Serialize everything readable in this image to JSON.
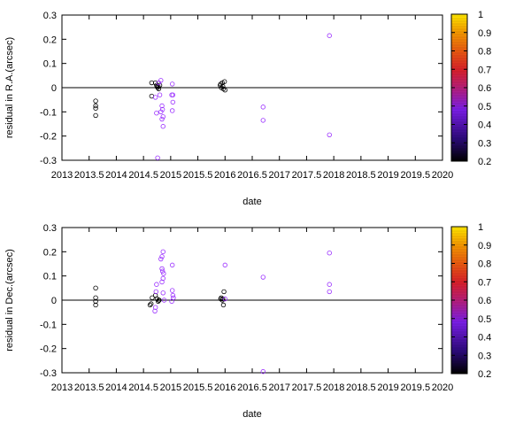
{
  "chart_data": [
    {
      "type": "scatter",
      "xlabel": "date",
      "ylabel": "residual in R.A.(arcsec)",
      "xlim": [
        2013,
        2020
      ],
      "ylim": [
        -0.3,
        0.3
      ],
      "xticks": [
        "2013",
        "2013.5",
        "2014",
        "2014.5",
        "2015",
        "2015.5",
        "2016",
        "2016.5",
        "2017",
        "2017.5",
        "2018",
        "2018.5",
        "2019",
        "2019.5",
        "2020"
      ],
      "yticks": [
        "-0.3",
        "-0.2",
        "-0.1",
        "0",
        "0.1",
        "0.2",
        "0.3"
      ],
      "zero_line": true,
      "colorbar": {
        "range": [
          0.2,
          1
        ],
        "ticks": [
          "1",
          "0.9",
          "0.8",
          "0.7",
          "0.6",
          "0.5",
          "0.4",
          "0.3",
          "0.2"
        ]
      },
      "points": [
        {
          "x": 2013.62,
          "y": -0.055,
          "c": 0.2
        },
        {
          "x": 2013.62,
          "y": -0.075,
          "c": 0.2
        },
        {
          "x": 2013.62,
          "y": -0.085,
          "c": 0.2
        },
        {
          "x": 2013.62,
          "y": -0.115,
          "c": 0.2
        },
        {
          "x": 2014.65,
          "y": 0.02,
          "c": 0.2
        },
        {
          "x": 2014.65,
          "y": -0.035,
          "c": 0.2
        },
        {
          "x": 2014.72,
          "y": 0.02,
          "c": 0.2
        },
        {
          "x": 2014.74,
          "y": 0.01,
          "c": 0.2
        },
        {
          "x": 2014.75,
          "y": 0.005,
          "c": 0.2
        },
        {
          "x": 2014.76,
          "y": 0.0,
          "c": 0.2
        },
        {
          "x": 2014.77,
          "y": 0.005,
          "c": 0.2
        },
        {
          "x": 2014.78,
          "y": -0.005,
          "c": 0.2
        },
        {
          "x": 2014.8,
          "y": 0.01,
          "c": 0.2
        },
        {
          "x": 2014.72,
          "y": -0.04,
          "c": 0.45
        },
        {
          "x": 2014.74,
          "y": -0.105,
          "c": 0.45
        },
        {
          "x": 2014.76,
          "y": -0.29,
          "c": 0.45
        },
        {
          "x": 2014.78,
          "y": 0.02,
          "c": 0.45
        },
        {
          "x": 2014.8,
          "y": -0.03,
          "c": 0.45
        },
        {
          "x": 2014.82,
          "y": 0.03,
          "c": 0.45
        },
        {
          "x": 2014.84,
          "y": -0.075,
          "c": 0.45
        },
        {
          "x": 2014.85,
          "y": -0.09,
          "c": 0.45
        },
        {
          "x": 2014.86,
          "y": -0.12,
          "c": 0.45
        },
        {
          "x": 2014.86,
          "y": -0.16,
          "c": 0.45
        },
        {
          "x": 2014.84,
          "y": -0.13,
          "c": 0.45
        },
        {
          "x": 2014.82,
          "y": -0.1,
          "c": 0.45
        },
        {
          "x": 2015.02,
          "y": -0.03,
          "c": 0.45
        },
        {
          "x": 2015.04,
          "y": -0.03,
          "c": 0.45
        },
        {
          "x": 2015.03,
          "y": 0.015,
          "c": 0.45
        },
        {
          "x": 2015.04,
          "y": -0.06,
          "c": 0.45
        },
        {
          "x": 2015.03,
          "y": -0.095,
          "c": 0.45
        },
        {
          "x": 2015.91,
          "y": 0.01,
          "c": 0.2
        },
        {
          "x": 2015.93,
          "y": 0.0,
          "c": 0.2
        },
        {
          "x": 2015.95,
          "y": 0.02,
          "c": 0.2
        },
        {
          "x": 2015.96,
          "y": 0.005,
          "c": 0.2
        },
        {
          "x": 2015.97,
          "y": -0.005,
          "c": 0.2
        },
        {
          "x": 2015.99,
          "y": 0.025,
          "c": 0.2
        },
        {
          "x": 2016.0,
          "y": -0.01,
          "c": 0.2
        },
        {
          "x": 2015.92,
          "y": 0.015,
          "c": 0.2
        },
        {
          "x": 2016.7,
          "y": -0.08,
          "c": 0.45
        },
        {
          "x": 2016.7,
          "y": -0.135,
          "c": 0.45
        },
        {
          "x": 2017.92,
          "y": 0.215,
          "c": 0.45
        },
        {
          "x": 2017.92,
          "y": -0.195,
          "c": 0.45
        }
      ]
    },
    {
      "type": "scatter",
      "xlabel": "date",
      "ylabel": "residual in Dec.(arcsec)",
      "xlim": [
        2013,
        2020
      ],
      "ylim": [
        -0.3,
        0.3
      ],
      "xticks": [
        "2013",
        "2013.5",
        "2014",
        "2014.5",
        "2015",
        "2015.5",
        "2016",
        "2016.5",
        "2017",
        "2017.5",
        "2018",
        "2018.5",
        "2019",
        "2019.5",
        "2020"
      ],
      "yticks": [
        "-0.3",
        "-0.2",
        "-0.1",
        "0",
        "0.1",
        "0.2",
        "0.3"
      ],
      "zero_line": true,
      "colorbar": {
        "range": [
          0.2,
          1
        ],
        "ticks": [
          "1",
          "0.9",
          "0.8",
          "0.7",
          "0.6",
          "0.5",
          "0.4",
          "0.3",
          "0.2"
        ]
      },
      "points": [
        {
          "x": 2013.62,
          "y": 0.05,
          "c": 0.2
        },
        {
          "x": 2013.62,
          "y": 0.01,
          "c": 0.2
        },
        {
          "x": 2013.62,
          "y": -0.005,
          "c": 0.2
        },
        {
          "x": 2013.62,
          "y": -0.02,
          "c": 0.2
        },
        {
          "x": 2014.62,
          "y": -0.02,
          "c": 0.2
        },
        {
          "x": 2014.64,
          "y": -0.015,
          "c": 0.2
        },
        {
          "x": 2014.66,
          "y": 0.01,
          "c": 0.2
        },
        {
          "x": 2014.72,
          "y": 0.02,
          "c": 0.2
        },
        {
          "x": 2014.75,
          "y": 0.005,
          "c": 0.2
        },
        {
          "x": 2014.77,
          "y": -0.005,
          "c": 0.2
        },
        {
          "x": 2014.78,
          "y": 0.0,
          "c": 0.2
        },
        {
          "x": 2014.79,
          "y": 0.0,
          "c": 0.2
        },
        {
          "x": 2014.73,
          "y": 0.035,
          "c": 0.45
        },
        {
          "x": 2014.74,
          "y": 0.065,
          "c": 0.45
        },
        {
          "x": 2014.72,
          "y": -0.03,
          "c": 0.45
        },
        {
          "x": 2014.71,
          "y": -0.045,
          "c": 0.45
        },
        {
          "x": 2014.82,
          "y": 0.17,
          "c": 0.45
        },
        {
          "x": 2014.84,
          "y": 0.18,
          "c": 0.45
        },
        {
          "x": 2014.86,
          "y": 0.2,
          "c": 0.45
        },
        {
          "x": 2014.84,
          "y": 0.13,
          "c": 0.45
        },
        {
          "x": 2014.85,
          "y": 0.12,
          "c": 0.45
        },
        {
          "x": 2014.87,
          "y": 0.11,
          "c": 0.45
        },
        {
          "x": 2014.86,
          "y": 0.09,
          "c": 0.45
        },
        {
          "x": 2014.84,
          "y": 0.075,
          "c": 0.45
        },
        {
          "x": 2014.86,
          "y": 0.03,
          "c": 0.45
        },
        {
          "x": 2014.88,
          "y": 0.0,
          "c": 0.45
        },
        {
          "x": 2015.03,
          "y": 0.145,
          "c": 0.45
        },
        {
          "x": 2015.03,
          "y": 0.04,
          "c": 0.45
        },
        {
          "x": 2015.05,
          "y": 0.01,
          "c": 0.45
        },
        {
          "x": 2015.02,
          "y": -0.005,
          "c": 0.45
        },
        {
          "x": 2015.04,
          "y": 0.02,
          "c": 0.45
        },
        {
          "x": 2015.92,
          "y": 0.005,
          "c": 0.2
        },
        {
          "x": 2015.93,
          "y": 0.01,
          "c": 0.2
        },
        {
          "x": 2015.95,
          "y": 0.0,
          "c": 0.2
        },
        {
          "x": 2015.96,
          "y": 0.005,
          "c": 0.2
        },
        {
          "x": 2015.97,
          "y": -0.02,
          "c": 0.2
        },
        {
          "x": 2015.98,
          "y": 0.035,
          "c": 0.2
        },
        {
          "x": 2016.0,
          "y": 0.145,
          "c": 0.45
        },
        {
          "x": 2016.0,
          "y": 0.005,
          "c": 0.45
        },
        {
          "x": 2016.7,
          "y": 0.095,
          "c": 0.45
        },
        {
          "x": 2016.7,
          "y": -0.295,
          "c": 0.45
        },
        {
          "x": 2017.92,
          "y": 0.195,
          "c": 0.45
        },
        {
          "x": 2017.92,
          "y": 0.065,
          "c": 0.45
        },
        {
          "x": 2017.92,
          "y": 0.035,
          "c": 0.45
        }
      ]
    }
  ]
}
